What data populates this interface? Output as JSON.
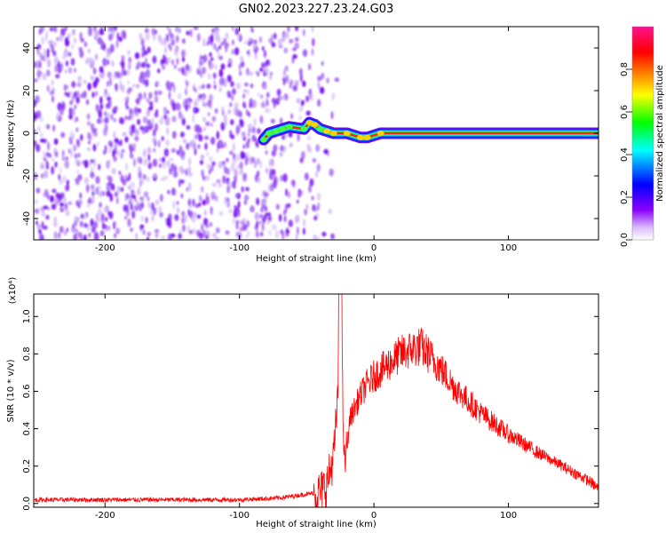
{
  "figure_title": "GN02.2023.227.23.24.G03",
  "chart_data": [
    {
      "type": "heatmap",
      "xlabel": "Height of straight line (km)",
      "ylabel": "Frequency (Hz)",
      "xlim": [
        -253,
        167
      ],
      "ylim": [
        -50,
        50
      ],
      "x_ticks": [
        -200,
        -100,
        0,
        100
      ],
      "y_ticks": [
        -40,
        -20,
        0,
        20,
        40
      ],
      "colorbar": {
        "label": "Normalized spectral amplitude",
        "range": [
          0,
          1
        ],
        "ticks": [
          "0.0",
          "0.2",
          "0.4",
          "0.6",
          "0.8"
        ],
        "colormap": [
          "#ffffff",
          "#8b00ff",
          "#0000ff",
          "#00ffff",
          "#00ff00",
          "#ffff00",
          "#ff8000",
          "#ff0000",
          "#ff1090"
        ]
      },
      "noise_region_x": [
        -253,
        -52
      ],
      "signal_ridge": [
        {
          "x": -82,
          "y": -3,
          "amp": 0.55
        },
        {
          "x": -78,
          "y": 0,
          "amp": 0.6
        },
        {
          "x": -73,
          "y": 1,
          "amp": 0.7
        },
        {
          "x": -68,
          "y": 2,
          "amp": 0.6
        },
        {
          "x": -63,
          "y": 3,
          "amp": 0.5
        },
        {
          "x": -52,
          "y": 2,
          "amp": 0.7
        },
        {
          "x": -48,
          "y": 5,
          "amp": 0.8
        },
        {
          "x": -44,
          "y": 4,
          "amp": 0.85
        },
        {
          "x": -40,
          "y": 2,
          "amp": 0.7
        },
        {
          "x": -35,
          "y": 1,
          "amp": 0.8
        },
        {
          "x": -30,
          "y": 0,
          "amp": 0.8
        },
        {
          "x": -20,
          "y": 0,
          "amp": 0.85
        },
        {
          "x": -10,
          "y": -2,
          "amp": 0.9
        },
        {
          "x": -5,
          "y": -2,
          "amp": 0.85
        },
        {
          "x": 5,
          "y": 0,
          "amp": 0.85
        },
        {
          "x": 20,
          "y": 0,
          "amp": 0.95
        },
        {
          "x": 60,
          "y": 0,
          "amp": 1.0
        },
        {
          "x": 100,
          "y": 0,
          "amp": 1.0
        },
        {
          "x": 140,
          "y": 0,
          "amp": 1.0
        },
        {
          "x": 167,
          "y": 0,
          "amp": 1.0
        }
      ]
    },
    {
      "type": "line",
      "xlabel": "Height of straight line (km)",
      "ylabel": "SNR (10 * v/v)",
      "y_multiplier": "(x10⁴)",
      "xlim": [
        -253,
        167
      ],
      "ylim": [
        -0.02,
        1.12
      ],
      "x_ticks": [
        -200,
        -100,
        0,
        100
      ],
      "y_ticks": [
        "0.0",
        "0.2",
        "0.4",
        "0.6",
        "0.8",
        "1.0"
      ],
      "series": [
        {
          "color": "#ff0000",
          "x": [
            -253,
            -200,
            -150,
            -100,
            -70,
            -50,
            -40,
            -35,
            -30,
            -27,
            -25,
            -22,
            -20,
            -18,
            -15,
            -10,
            -5,
            0,
            10,
            20,
            30,
            35,
            40,
            50,
            60,
            80,
            100,
            120,
            140,
            150,
            160,
            167
          ],
          "y": [
            0.02,
            0.02,
            0.02,
            0.02,
            0.03,
            0.05,
            0.06,
            0.1,
            0.25,
            0.55,
            1.1,
            0.2,
            0.3,
            0.45,
            0.5,
            0.58,
            0.64,
            0.68,
            0.74,
            0.8,
            0.83,
            0.84,
            0.8,
            0.72,
            0.62,
            0.48,
            0.37,
            0.28,
            0.2,
            0.16,
            0.12,
            0.08
          ]
        }
      ]
    }
  ]
}
